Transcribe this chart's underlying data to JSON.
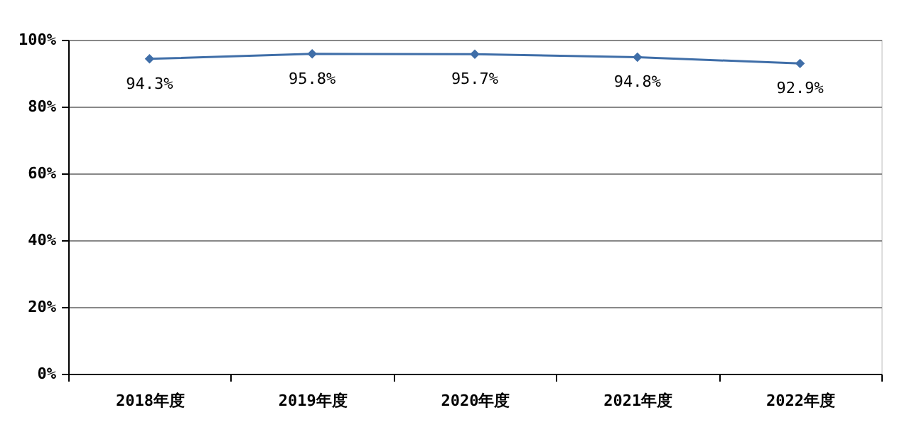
{
  "chart_data": {
    "type": "line",
    "categories": [
      "2018年度",
      "2019年度",
      "2020年度",
      "2021年度",
      "2022年度"
    ],
    "series": [
      {
        "color": "#3f6ea8",
        "values": [
          94.3,
          95.8,
          95.7,
          94.8,
          92.9
        ],
        "value_labels": [
          "94.3%",
          "95.8%",
          "95.7%",
          "94.8%",
          "92.9%"
        ]
      }
    ],
    "ylim": [
      0,
      100
    ],
    "yticks": [
      {
        "value": 0,
        "label": "0%"
      },
      {
        "value": 20,
        "label": "20%"
      },
      {
        "value": 40,
        "label": "40%"
      },
      {
        "value": 60,
        "label": "60%"
      },
      {
        "value": 80,
        "label": "80%"
      },
      {
        "value": 100,
        "label": "100%"
      }
    ],
    "grid": "y",
    "marker": "diamond",
    "line_style": "solid"
  }
}
